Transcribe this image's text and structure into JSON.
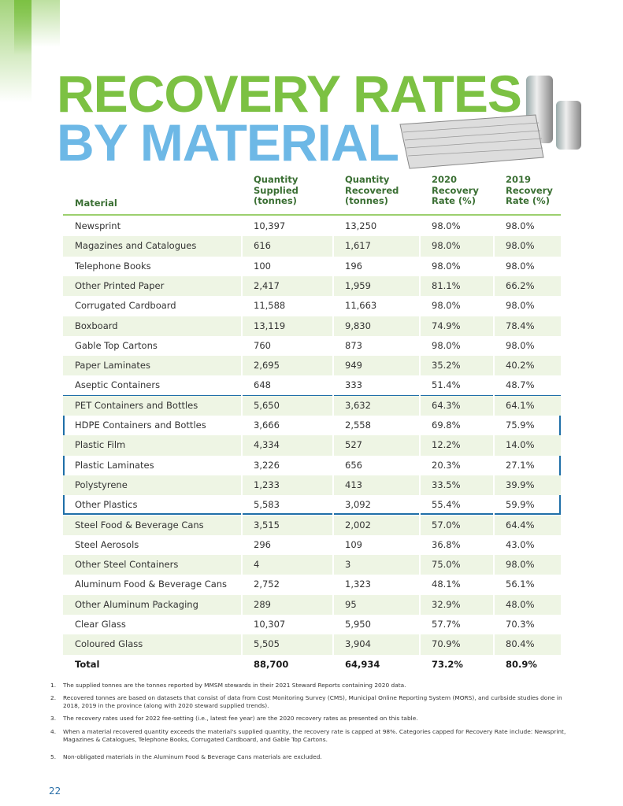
{
  "header": {
    "title_line1": "RECOVERY RATES",
    "title_line2": "BY MATERIAL"
  },
  "table": {
    "columns": [
      "Material",
      "Quantity Supplied (tonnes)",
      "Quantity Recovered (tonnes)",
      "2020 Recovery Rate (%)",
      "2019 Recovery Rate (%)"
    ],
    "rows": [
      [
        "Newsprint",
        "10,397",
        "13,250",
        "98.0%",
        "98.0%"
      ],
      [
        "Magazines and Catalogues",
        "616",
        "1,617",
        "98.0%",
        "98.0%"
      ],
      [
        "Telephone Books",
        "100",
        "196",
        "98.0%",
        "98.0%"
      ],
      [
        "Other Printed Paper",
        "2,417",
        "1,959",
        "81.1%",
        "66.2%"
      ],
      [
        "Corrugated Cardboard",
        "11,588",
        "11,663",
        "98.0%",
        "98.0%"
      ],
      [
        "Boxboard",
        "13,119",
        "9,830",
        "74.9%",
        "78.4%"
      ],
      [
        "Gable Top Cartons",
        "760",
        "873",
        "98.0%",
        "98.0%"
      ],
      [
        "Paper Laminates",
        "2,695",
        "949",
        "35.2%",
        "40.2%"
      ],
      [
        "Aseptic Containers",
        "648",
        "333",
        "51.4%",
        "48.7%"
      ],
      [
        "PET Containers and Bottles",
        "5,650",
        "3,632",
        "64.3%",
        "64.1%"
      ],
      [
        "HDPE Containers and Bottles",
        "3,666",
        "2,558",
        "69.8%",
        "75.9%"
      ],
      [
        "Plastic Film",
        "4,334",
        "527",
        "12.2%",
        "14.0%"
      ],
      [
        "Plastic Laminates",
        "3,226",
        "656",
        "20.3%",
        "27.1%"
      ],
      [
        "Polystyrene",
        "1,233",
        "413",
        "33.5%",
        "39.9%"
      ],
      [
        "Other Plastics",
        "5,583",
        "3,092",
        "55.4%",
        "59.9%"
      ],
      [
        "Steel Food & Beverage Cans",
        "3,515",
        "2,002",
        "57.0%",
        "64.4%"
      ],
      [
        "Steel Aerosols",
        "296",
        "109",
        "36.8%",
        "43.0%"
      ],
      [
        "Other Steel Containers",
        "4",
        "3",
        "75.0%",
        "98.0%"
      ],
      [
        "Aluminum Food & Beverage Cans",
        "2,752",
        "1,323",
        "48.1%",
        "56.1%"
      ],
      [
        "Other Aluminum Packaging",
        "289",
        "95",
        "32.9%",
        "48.0%"
      ],
      [
        "Clear Glass",
        "10,307",
        "5,950",
        "57.7%",
        "70.3%"
      ],
      [
        "Coloured Glass",
        "5,505",
        "3,904",
        "70.9%",
        "80.4%"
      ]
    ],
    "total": [
      "Total",
      "88,700",
      "64,934",
      "73.2%",
      "80.9%"
    ]
  },
  "footnotes": [
    {
      "number": "1.",
      "text": "The supplied tonnes are the tonnes reported by MMSM stewards in their 2021 Steward Reports containing 2020 data."
    },
    {
      "number": "2.",
      "text": "Recovered tonnes are based on datasets that consist of data from Cost Monitoring Survey (CMS), Municipal Online Reporting System (MORS), and curbside studies done in 2018, 2019 in the province (along with 2020 steward supplied trends)."
    },
    {
      "number": "3.",
      "text": "The recovery rates used for 2022 fee-setting (i.e., latest fee year) are the 2020 recovery rates as presented on this table."
    },
    {
      "number": "4.",
      "text": "When a material recovered quantity exceeds the material's supplied quantity, the recovery rate is capped at 98%. Categories capped for Recovery Rate include: Newsprint, Magazines & Catalogues, Telephone Books, Corrugated Cardboard, and Gable Top Cartons."
    },
    {
      "number": "5.",
      "text": "Non-obligated materials in the Aluminum Food & Beverage Cans materials are excluded."
    }
  ],
  "page_number": "22"
}
